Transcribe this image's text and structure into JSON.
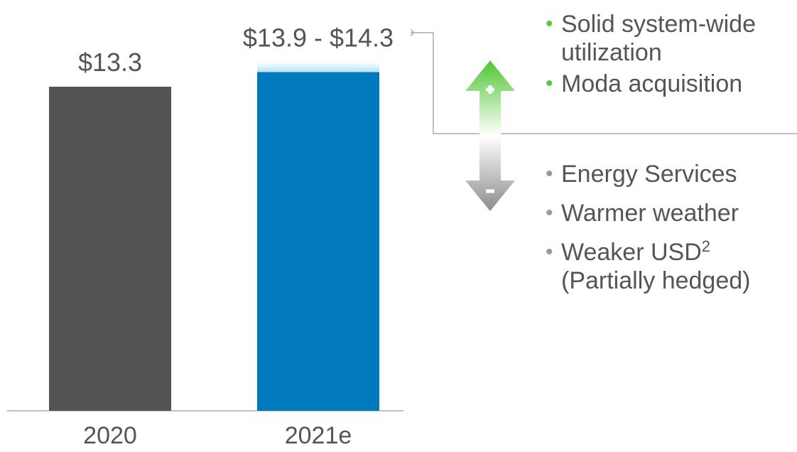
{
  "chart_data": {
    "type": "bar",
    "categories": [
      "2020",
      "2021e"
    ],
    "values": [
      13.3,
      13.9
    ],
    "range_high": [
      null,
      14.3
    ],
    "value_labels": [
      "$13.3",
      "$13.9 - $14.3"
    ],
    "colors": [
      "#545454",
      "#0079bd"
    ],
    "range_color": "#aee3fb",
    "ylim": [
      0,
      16.8
    ],
    "grid": false
  },
  "drivers": {
    "positive": [
      "Solid system-wide utilization",
      "Moda acquisition"
    ],
    "negative": [
      "Energy Services",
      "Warmer weather",
      "Weaker USD"
    ],
    "negative_sup": "2",
    "negative_note": "(Partially hedged)"
  }
}
